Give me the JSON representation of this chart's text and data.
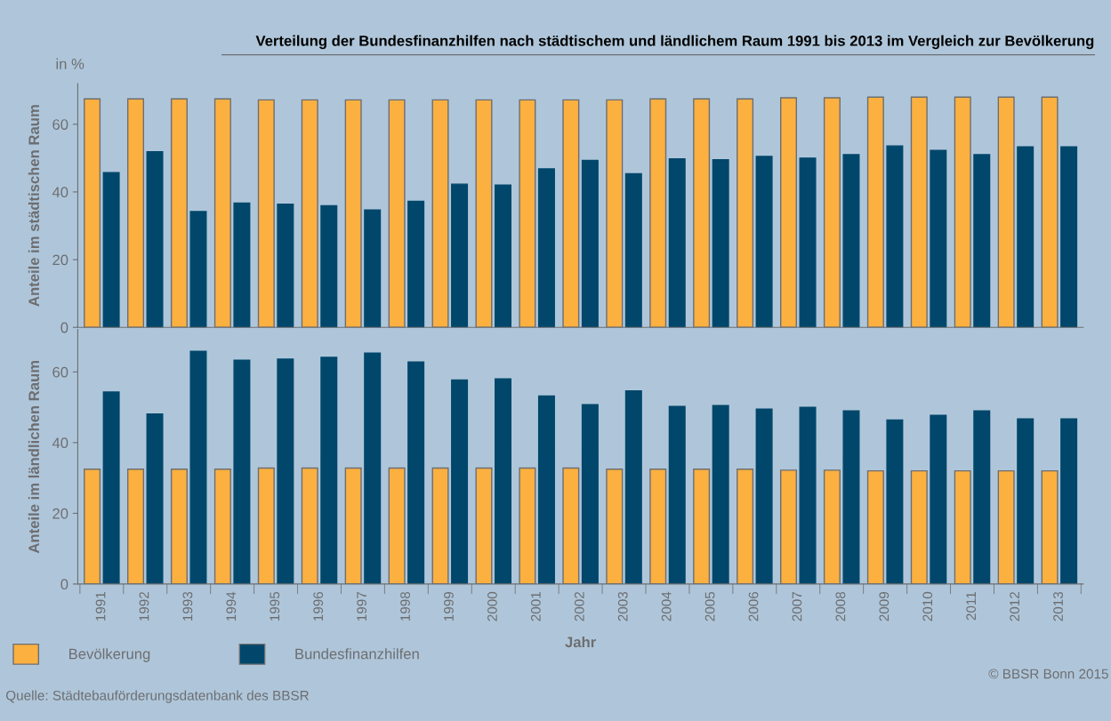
{
  "chart_data": [
    {
      "type": "bar",
      "title": "Verteilung der Bundesfinanzhilfen nach städtischem und ländlichem Raum 1991 bis 2013 im Vergleich zur Bevölkerung",
      "ylabel": "Anteile im städtischen Raum",
      "categories": [
        "1991",
        "1992",
        "1993",
        "1994",
        "1995",
        "1996",
        "1997",
        "1998",
        "1999",
        "2000",
        "2001",
        "2002",
        "2003",
        "2004",
        "2005",
        "2006",
        "2007",
        "2008",
        "2009",
        "2010",
        "2011",
        "2012",
        "2013"
      ],
      "series": [
        {
          "name": "Bevölkerung",
          "color": "#fbb040",
          "values": [
            67.5,
            67.5,
            67.5,
            67.5,
            67.2,
            67.2,
            67.2,
            67.2,
            67.2,
            67.2,
            67.2,
            67.2,
            67.2,
            67.5,
            67.5,
            67.5,
            67.8,
            67.8,
            68,
            68,
            68,
            68,
            68
          ]
        },
        {
          "name": "Bundesfinanzhilfen",
          "color": "#00476b",
          "values": [
            45.7,
            51.9,
            34.2,
            36.7,
            36.4,
            35.9,
            34.7,
            37.2,
            42.3,
            42.0,
            46.8,
            49.3,
            45.4,
            49.8,
            49.5,
            50.5,
            50.0,
            51.0,
            53.6,
            52.3,
            51.0,
            53.3,
            53.3
          ]
        }
      ],
      "ylim": [
        0,
        72
      ],
      "yticks": [
        0,
        20,
        40,
        60
      ],
      "tick_labels": "y",
      "grid": false,
      "legend": "bottom left",
      "annotations": [
        "in %"
      ]
    },
    {
      "type": "bar",
      "ylabel": "Anteile im ländlichen Raum",
      "xlabel": "Jahr",
      "categories": [
        "1991",
        "1992",
        "1993",
        "1994",
        "1995",
        "1996",
        "1997",
        "1998",
        "1999",
        "2000",
        "2001",
        "2002",
        "2003",
        "2004",
        "2005",
        "2006",
        "2007",
        "2008",
        "2009",
        "2010",
        "2011",
        "2012",
        "2013"
      ],
      "series": [
        {
          "color": "#fbb040",
          "values": [
            32.5,
            32.5,
            32.5,
            32.5,
            32.8,
            32.8,
            32.8,
            32.8,
            32.8,
            32.8,
            32.8,
            32.8,
            32.5,
            32.5,
            32.5,
            32.5,
            32.2,
            32.2,
            32.0,
            32.0,
            32.0,
            32.0,
            32.0
          ]
        },
        {
          "color": "#00476b",
          "values": [
            54.3,
            48.1,
            65.8,
            63.3,
            63.6,
            64.1,
            65.3,
            62.8,
            57.7,
            58.0,
            53.2,
            50.7,
            54.6,
            50.2,
            50.5,
            49.5,
            50.0,
            49.0,
            46.4,
            47.7,
            49.0,
            46.7,
            46.7
          ]
        }
      ],
      "ylim": [
        0,
        72
      ],
      "yticks": [
        0,
        20,
        40,
        60
      ],
      "grid": false,
      "annotations": [
        "Quelle: Städtebauförderungsdatenbank des BBSR",
        "© BBSR Bonn 2015"
      ]
    }
  ]
}
